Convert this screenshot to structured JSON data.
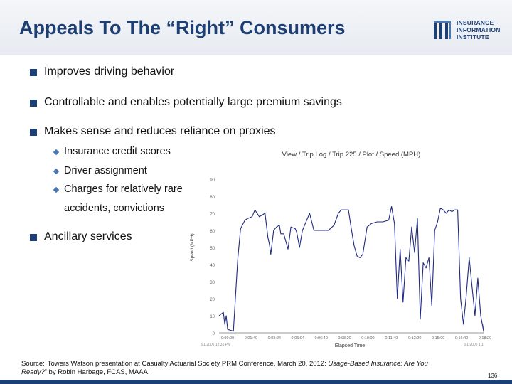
{
  "slide": {
    "title": "Appeals To The “Right” Consumers",
    "logo": {
      "line1": "INSURANCE",
      "line2": "INFORMATION",
      "line3": "INSTITUTE",
      "icon": "iii-logo-icon"
    },
    "bullets": [
      {
        "text": "Improves driving behavior"
      },
      {
        "text": "Controllable and enables potentially large premium savings"
      },
      {
        "text": "Makes sense and reduces reliance on proxies"
      }
    ],
    "sub_bullets": [
      {
        "text": "Insurance credit scores"
      },
      {
        "text": "Driver assignment"
      },
      {
        "text": "Charges for relatively rare"
      },
      {
        "text": "accidents, convictions"
      }
    ],
    "last_bullet": {
      "text": "Ancillary services"
    },
    "source": {
      "label": "Source:",
      "text_a": "Towers Watson presentation at Casualty Actuarial Society PRM Conference, March 20, 2012: ",
      "title_italic": "Usage-Based Insurance: Are You Ready?",
      "text_b": "” by Robin Harbage, FCAS, MAAA."
    },
    "page_number": "136",
    "colors": {
      "title": "#1d3f73",
      "bullet": "#1d3f73",
      "sub_bullet": "#4a78b5",
      "line": "#1f2a80"
    }
  },
  "chart_data": {
    "type": "line",
    "title": "View / Trip Log / Trip 225 / Plot / Speed (MPH)",
    "xlabel": "Elapsed Time",
    "ylabel": "Speed (MPH)",
    "ylim": [
      0,
      100
    ],
    "y_ticks": [
      "0",
      "10",
      "20",
      "30",
      "40",
      "50",
      "60",
      "70",
      "80",
      "90"
    ],
    "x_tick_labels": [
      "0:00:00",
      "0:01:40",
      "0:03:24",
      "0:05:04",
      "0:06:40",
      "0:08:20",
      "0:10:00",
      "0:11:40",
      "0:13:20",
      "0:15:00",
      "0:16:40",
      "0:18:20"
    ],
    "x_start_label": "3/1/2005 12:31 PM",
    "x_end_label": "3/1/2005 1:1",
    "x": [
      0.0,
      0.3,
      0.4,
      0.5,
      0.6,
      1.0,
      1.3,
      1.5,
      1.8,
      2.0,
      2.3,
      2.5,
      2.8,
      3.0,
      3.2,
      3.4,
      3.5,
      3.6,
      3.8,
      4.0,
      4.2,
      4.3,
      4.5,
      4.8,
      5.0,
      5.3,
      5.4,
      5.6,
      5.8,
      6.0,
      6.3,
      6.6,
      7.0,
      7.3,
      7.6,
      8.0,
      8.3,
      8.5,
      8.7,
      9.0,
      9.2,
      9.4,
      9.6,
      9.8,
      10.0,
      10.3,
      10.6,
      11.0,
      11.4,
      11.8,
      12.0,
      12.2,
      12.4,
      12.6,
      12.8,
      13.0,
      13.2,
      13.4,
      13.6,
      13.8,
      14.0,
      14.2,
      14.4,
      14.6,
      14.8,
      15.0,
      15.2,
      15.4,
      15.6,
      15.8,
      16.0,
      16.2,
      16.4,
      16.6,
      16.8,
      17.0,
      17.2,
      17.4,
      17.6,
      17.8,
      18.0,
      18.2,
      18.4
    ],
    "series": [
      {
        "values": [
          10,
          12,
          5,
          10,
          2,
          1,
          43,
          61,
          66,
          67,
          68,
          72,
          68,
          69,
          70,
          56,
          52,
          46,
          60,
          62,
          63,
          58,
          58,
          49,
          62,
          61,
          59,
          50,
          60,
          64,
          70,
          60,
          60,
          60,
          60,
          63,
          70,
          72,
          72,
          72,
          61,
          51,
          45,
          44,
          46,
          62,
          64,
          65,
          65,
          66,
          74,
          64,
          20,
          49,
          18,
          44,
          42,
          62,
          47,
          67,
          8,
          41,
          38,
          44,
          16,
          60,
          65,
          73,
          72,
          70,
          72,
          71,
          72,
          72,
          20,
          5,
          22,
          44,
          27,
          10,
          32,
          10,
          1
        ]
      }
    ]
  }
}
